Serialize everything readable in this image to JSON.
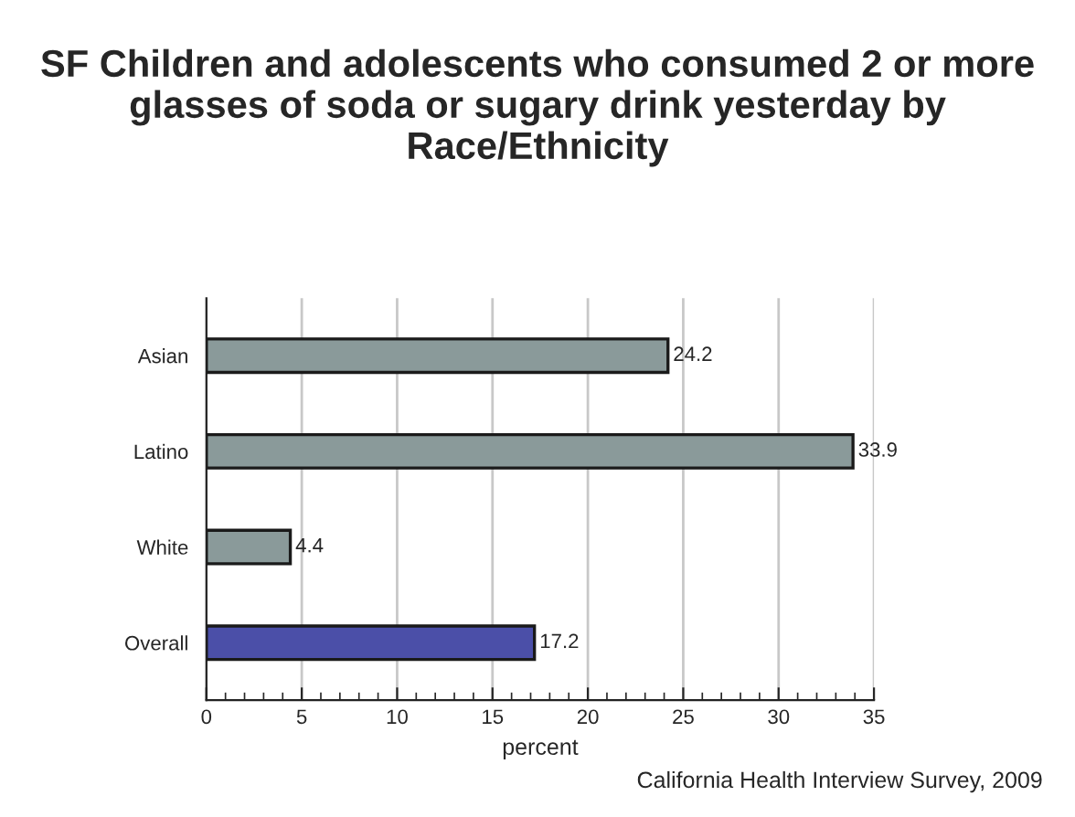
{
  "chart_data": {
    "type": "bar",
    "orientation": "horizontal",
    "title": "SF Children and adolescents who consumed 2 or more glasses of soda or sugary drink yesterday by Race/Ethnicity",
    "xlabel": "percent",
    "categories": [
      "Asian",
      "Latino",
      "White",
      "Overall"
    ],
    "values": [
      24.2,
      33.9,
      4.4,
      17.2
    ],
    "colors": [
      "#8a9a9a",
      "#8a9a9a",
      "#8a9a9a",
      "#4b4fa8"
    ],
    "data_labels": true,
    "xlim": [
      0,
      35
    ],
    "xticks": [
      0,
      5,
      10,
      15,
      20,
      25,
      30,
      35
    ],
    "grid": "x",
    "annotations": [
      "California Health Interview Survey, 2009"
    ]
  }
}
